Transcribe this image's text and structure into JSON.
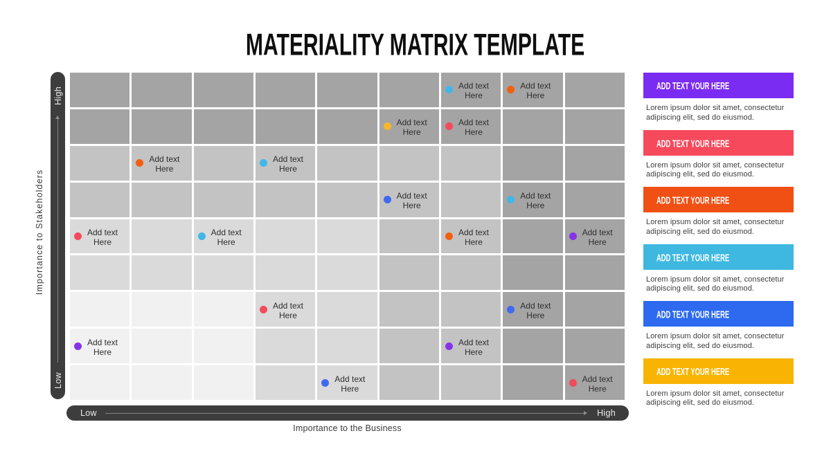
{
  "title": "MATERIALITY MATRIX TEMPLATE",
  "chart_data": {
    "type": "heatmap",
    "title": "Materiality Matrix",
    "xlabel": "Importance to the Business",
    "ylabel": "Importance to Stakeholders",
    "x_axis": {
      "min_label": "Low",
      "max_label": "High"
    },
    "y_axis": {
      "min_label": "Low",
      "max_label": "High"
    },
    "grid": {
      "rows": 9,
      "cols": 9,
      "tone_levels": {
        "0": "#f1f1f1",
        "1": "#dadada",
        "2": "#c3c3c3",
        "3": "#a4a4a4"
      },
      "tone_map": [
        [
          3,
          3,
          3,
          3,
          3,
          3,
          3,
          3,
          3
        ],
        [
          3,
          3,
          3,
          3,
          3,
          3,
          3,
          3,
          3
        ],
        [
          2,
          2,
          2,
          2,
          2,
          2,
          2,
          3,
          3
        ],
        [
          2,
          2,
          2,
          2,
          2,
          2,
          2,
          3,
          3
        ],
        [
          1,
          1,
          1,
          1,
          1,
          2,
          2,
          3,
          3
        ],
        [
          1,
          1,
          1,
          1,
          1,
          2,
          2,
          3,
          3
        ],
        [
          0,
          0,
          0,
          1,
          1,
          2,
          2,
          3,
          3
        ],
        [
          0,
          0,
          0,
          1,
          1,
          2,
          2,
          3,
          3
        ],
        [
          0,
          0,
          0,
          1,
          1,
          2,
          2,
          3,
          3
        ]
      ]
    },
    "points": [
      {
        "row": 0,
        "col": 6,
        "color": "#41b7e8",
        "label": "Add text Here"
      },
      {
        "row": 0,
        "col": 7,
        "color": "#f2600f",
        "label": "Add text Here"
      },
      {
        "row": 1,
        "col": 5,
        "color": "#f8b62a",
        "label": "Add text Here"
      },
      {
        "row": 1,
        "col": 6,
        "color": "#f34b5c",
        "label": "Add text Here"
      },
      {
        "row": 2,
        "col": 1,
        "color": "#f2600f",
        "label": "Add text Here"
      },
      {
        "row": 2,
        "col": 3,
        "color": "#41b7e8",
        "label": "Add text Here"
      },
      {
        "row": 3,
        "col": 5,
        "color": "#4169f0",
        "label": "Add text Here"
      },
      {
        "row": 3,
        "col": 7,
        "color": "#41b7e8",
        "label": "Add text Here"
      },
      {
        "row": 4,
        "col": 0,
        "color": "#f34b5c",
        "label": "Add text Here"
      },
      {
        "row": 4,
        "col": 2,
        "color": "#41b7e8",
        "label": "Add text Here"
      },
      {
        "row": 4,
        "col": 6,
        "color": "#f2600f",
        "label": "Add text Here"
      },
      {
        "row": 4,
        "col": 8,
        "color": "#8633e8",
        "label": "Add text Here"
      },
      {
        "row": 6,
        "col": 3,
        "color": "#f34b5c",
        "label": "Add text Here"
      },
      {
        "row": 6,
        "col": 7,
        "color": "#4169f0",
        "label": "Add text Here"
      },
      {
        "row": 7,
        "col": 0,
        "color": "#8633e8",
        "label": "Add text Here"
      },
      {
        "row": 7,
        "col": 6,
        "color": "#8633e8",
        "label": "Add text Here"
      },
      {
        "row": 8,
        "col": 4,
        "color": "#4169f0",
        "label": "Add text Here"
      },
      {
        "row": 8,
        "col": 8,
        "color": "#f34b5c",
        "label": "Add text Here"
      }
    ]
  },
  "axes": {
    "y": {
      "label": "Importance to Stakeholders",
      "min": "Low",
      "max": "High"
    },
    "x": {
      "label": "Importance to the Business",
      "min": "Low",
      "max": "High"
    }
  },
  "legend": [
    {
      "heading": "ADD TEXT YOUR HERE",
      "color": "#7b2cf2",
      "body": "Lorem ipsum dolor sit amet, consectetur adipiscing elit, sed do eiusmod."
    },
    {
      "heading": "ADD TEXT YOUR HERE",
      "color": "#f7495c",
      "body": "Lorem ipsum dolor sit amet, consectetur adipiscing elit, sed do eiusmod."
    },
    {
      "heading": "ADD TEXT YOUR HERE",
      "color": "#f05014",
      "body": "Lorem ipsum dolor sit amet, consectetur adipiscing elit, sed do eiusmod."
    },
    {
      "heading": "ADD TEXT YOUR HERE",
      "color": "#3eb8e0",
      "body": "Lorem ipsum dolor sit amet, consectetur adipiscing elit, sed do eiusmod."
    },
    {
      "heading": "ADD TEXT YOUR HERE",
      "color": "#2d6af0",
      "body": "Lorem ipsum dolor sit amet, consectetur adipiscing elit, sed do eiusmod."
    },
    {
      "heading": "ADD TEXT YOUR HERE",
      "color": "#f9b403",
      "body": "Lorem ipsum dolor sit amet, consectetur adipiscing elit, sed do eiusmod."
    }
  ]
}
